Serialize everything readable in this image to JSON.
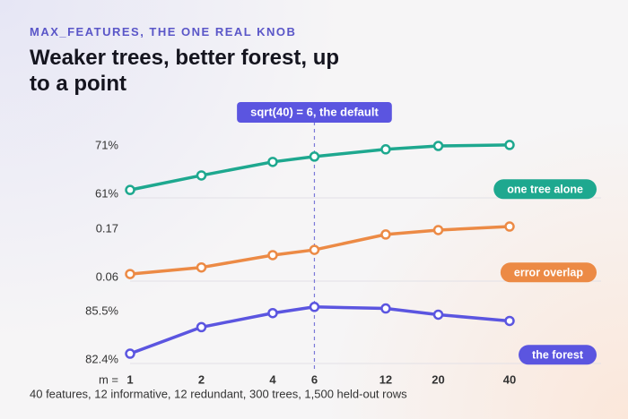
{
  "kicker": "MAX_FEATURES, THE ONE REAL KNOB",
  "title": "Weaker trees, better forest, up to a point",
  "annotation": {
    "label": "sqrt(40) = 6, the default",
    "x": 6
  },
  "xlabel": "m =",
  "footnote": "40 features, 12 informative, 12 redundant, 300 trees, 1,500 held-out rows",
  "chart_data": [
    {
      "type": "line",
      "xscale": "log",
      "x": [
        1,
        2,
        4,
        6,
        12,
        20,
        40
      ],
      "xlim": [
        1,
        40
      ],
      "ylim": [
        61,
        71
      ],
      "yticks": [
        {
          "value": 61,
          "label": "61%"
        },
        {
          "value": 71,
          "label": "71%"
        }
      ],
      "grid": true,
      "series": [
        {
          "name": "one tree alone",
          "color": "#1ea88f",
          "values": [
            61.9,
            64.9,
            67.7,
            68.8,
            70.3,
            71.0,
            71.2
          ]
        }
      ]
    },
    {
      "type": "line",
      "xscale": "log",
      "x": [
        1,
        2,
        4,
        6,
        12,
        20,
        40
      ],
      "xlim": [
        1,
        40
      ],
      "ylim": [
        0.06,
        0.17
      ],
      "yticks": [
        0.06,
        0.17
      ],
      "grid": true,
      "series": [
        {
          "name": "error overlap",
          "color": "#ec8a45",
          "values": [
            0.068,
            0.083,
            0.111,
            0.123,
            0.158,
            0.168,
            0.176
          ]
        }
      ]
    },
    {
      "type": "line",
      "xscale": "log",
      "x": [
        1,
        2,
        4,
        6,
        12,
        20,
        40
      ],
      "xlim": [
        1,
        40
      ],
      "xticks": [
        1,
        2,
        4,
        6,
        12,
        20,
        40
      ],
      "ylim": [
        82.4,
        85.5
      ],
      "yticks": [
        {
          "value": 82.4,
          "label": "82.4%"
        },
        {
          "value": 85.5,
          "label": "85.5%"
        }
      ],
      "grid": true,
      "series": [
        {
          "name": "the forest",
          "color": "#5b55e0",
          "values": [
            82.8,
            84.5,
            85.4,
            85.8,
            85.7,
            85.3,
            84.9
          ]
        }
      ]
    }
  ]
}
